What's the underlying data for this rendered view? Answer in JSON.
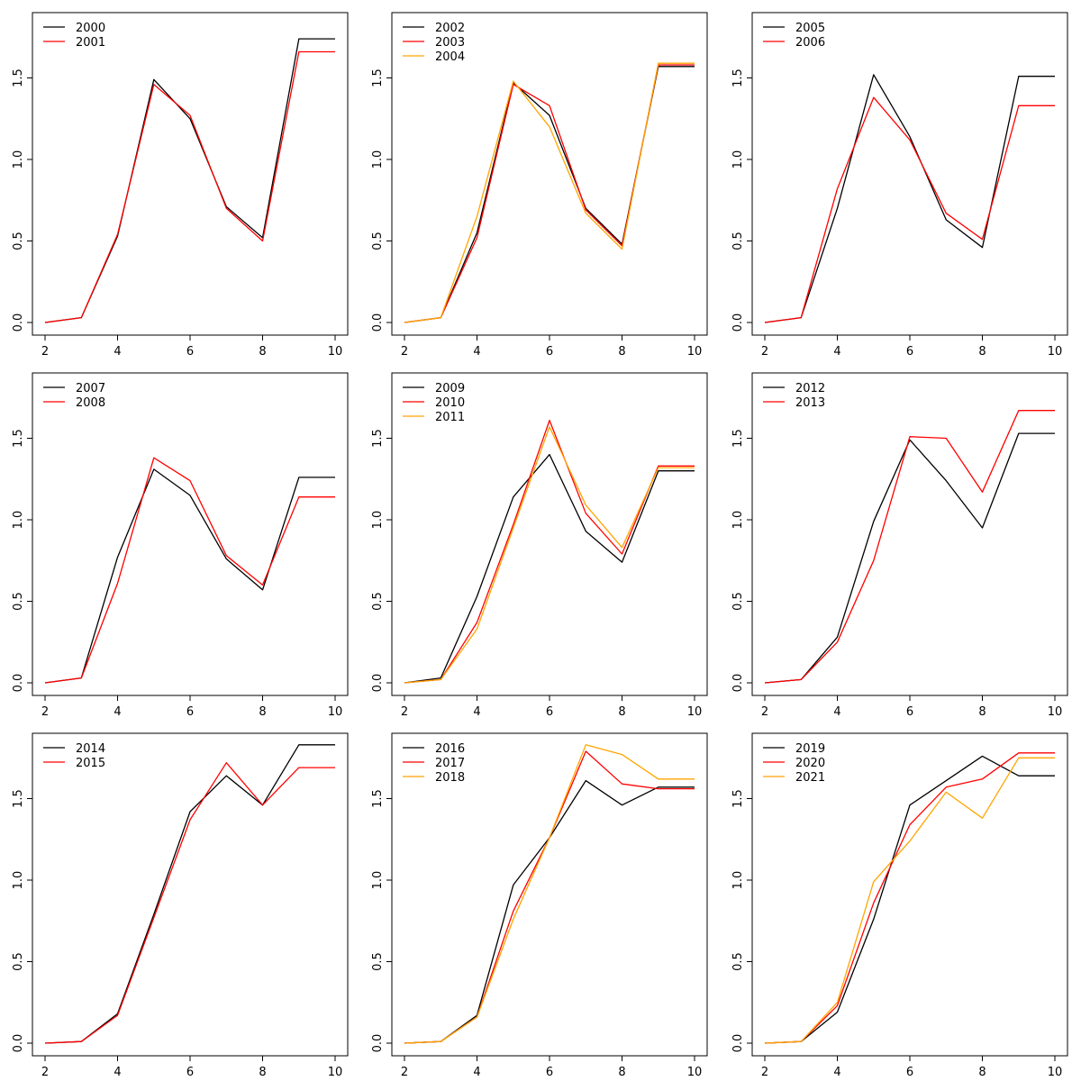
{
  "figure": {
    "colors": {
      "black": "#000000",
      "red": "#ff0000",
      "orange": "#ffa500"
    }
  },
  "chart_data": [
    {
      "type": "line",
      "x": [
        2,
        3,
        4,
        5,
        6,
        7,
        8,
        9,
        10
      ],
      "xlim": [
        2,
        10
      ],
      "ylim": [
        0,
        1.82
      ],
      "xticks": [
        "2",
        "4",
        "6",
        "8",
        "10"
      ],
      "yticks": [
        "0.0",
        "0.5",
        "1.0",
        "1.5"
      ],
      "legend_position": "top-left",
      "grid": false,
      "series": [
        {
          "name": "2000",
          "color": "#000000",
          "values": [
            0.0,
            0.03,
            0.53,
            1.49,
            1.25,
            0.71,
            0.52,
            1.74,
            1.74
          ]
        },
        {
          "name": "2001",
          "color": "#ff0000",
          "values": [
            0.0,
            0.03,
            0.54,
            1.46,
            1.27,
            0.7,
            0.5,
            1.66,
            1.66
          ]
        }
      ]
    },
    {
      "type": "line",
      "x": [
        2,
        3,
        4,
        5,
        6,
        7,
        8,
        9,
        10
      ],
      "xlim": [
        2,
        10
      ],
      "ylim": [
        0,
        1.82
      ],
      "xticks": [
        "2",
        "4",
        "6",
        "8",
        "10"
      ],
      "yticks": [
        "0.0",
        "0.5",
        "1.0",
        "1.5"
      ],
      "legend_position": "top-left",
      "grid": false,
      "series": [
        {
          "name": "2002",
          "color": "#000000",
          "values": [
            0.0,
            0.03,
            0.55,
            1.47,
            1.27,
            0.7,
            0.48,
            1.57,
            1.57
          ]
        },
        {
          "name": "2003",
          "color": "#ff0000",
          "values": [
            0.0,
            0.03,
            0.52,
            1.46,
            1.33,
            0.69,
            0.47,
            1.58,
            1.58
          ]
        },
        {
          "name": "2004",
          "color": "#ffa500",
          "values": [
            0.0,
            0.03,
            0.65,
            1.48,
            1.2,
            0.67,
            0.45,
            1.59,
            1.59
          ]
        }
      ]
    },
    {
      "type": "line",
      "x": [
        2,
        3,
        4,
        5,
        6,
        7,
        8,
        9,
        10
      ],
      "xlim": [
        2,
        10
      ],
      "ylim": [
        0,
        1.82
      ],
      "xticks": [
        "2",
        "4",
        "6",
        "8",
        "10"
      ],
      "yticks": [
        "0.0",
        "0.5",
        "1.0",
        "1.5"
      ],
      "legend_position": "top-left",
      "grid": false,
      "series": [
        {
          "name": "2005",
          "color": "#000000",
          "values": [
            0.0,
            0.03,
            0.7,
            1.52,
            1.14,
            0.63,
            0.46,
            1.51,
            1.51
          ]
        },
        {
          "name": "2006",
          "color": "#ff0000",
          "values": [
            0.0,
            0.03,
            0.82,
            1.38,
            1.12,
            0.67,
            0.51,
            1.33,
            1.33
          ]
        }
      ]
    },
    {
      "type": "line",
      "x": [
        2,
        3,
        4,
        5,
        6,
        7,
        8,
        9,
        10
      ],
      "xlim": [
        2,
        10
      ],
      "ylim": [
        0,
        1.82
      ],
      "xticks": [
        "2",
        "4",
        "6",
        "8",
        "10"
      ],
      "yticks": [
        "0.0",
        "0.5",
        "1.0",
        "1.5"
      ],
      "legend_position": "top-left",
      "grid": false,
      "series": [
        {
          "name": "2007",
          "color": "#000000",
          "values": [
            0.0,
            0.03,
            0.77,
            1.31,
            1.15,
            0.76,
            0.57,
            1.26,
            1.26
          ]
        },
        {
          "name": "2008",
          "color": "#ff0000",
          "values": [
            0.0,
            0.03,
            0.61,
            1.38,
            1.24,
            0.78,
            0.6,
            1.14,
            1.14
          ]
        }
      ]
    },
    {
      "type": "line",
      "x": [
        2,
        3,
        4,
        5,
        6,
        7,
        8,
        9,
        10
      ],
      "xlim": [
        2,
        10
      ],
      "ylim": [
        0,
        1.82
      ],
      "xticks": [
        "2",
        "4",
        "6",
        "8",
        "10"
      ],
      "yticks": [
        "0.0",
        "0.5",
        "1.0",
        "1.5"
      ],
      "legend_position": "top-left",
      "grid": false,
      "series": [
        {
          "name": "2009",
          "color": "#000000",
          "values": [
            0.0,
            0.03,
            0.53,
            1.14,
            1.4,
            0.93,
            0.74,
            1.3,
            1.3
          ]
        },
        {
          "name": "2010",
          "color": "#ff0000",
          "values": [
            0.0,
            0.02,
            0.37,
            0.97,
            1.61,
            1.04,
            0.79,
            1.33,
            1.33
          ]
        },
        {
          "name": "2011",
          "color": "#ffa500",
          "values": [
            0.0,
            0.02,
            0.33,
            0.95,
            1.57,
            1.09,
            0.83,
            1.32,
            1.32
          ]
        }
      ]
    },
    {
      "type": "line",
      "x": [
        2,
        3,
        4,
        5,
        6,
        7,
        8,
        9,
        10
      ],
      "xlim": [
        2,
        10
      ],
      "ylim": [
        0,
        1.82
      ],
      "xticks": [
        "2",
        "4",
        "6",
        "8",
        "10"
      ],
      "yticks": [
        "0.0",
        "0.5",
        "1.0",
        "1.5"
      ],
      "legend_position": "top-left",
      "grid": false,
      "series": [
        {
          "name": "2012",
          "color": "#000000",
          "values": [
            0.0,
            0.02,
            0.28,
            0.99,
            1.49,
            1.24,
            0.95,
            1.53,
            1.53
          ]
        },
        {
          "name": "2013",
          "color": "#ff0000",
          "values": [
            0.0,
            0.02,
            0.25,
            0.75,
            1.51,
            1.5,
            1.17,
            1.67,
            1.67
          ]
        }
      ]
    },
    {
      "type": "line",
      "x": [
        2,
        3,
        4,
        5,
        6,
        7,
        8,
        9,
        10
      ],
      "xlim": [
        2,
        10
      ],
      "ylim": [
        0,
        1.82
      ],
      "xticks": [
        "2",
        "4",
        "6",
        "8",
        "10"
      ],
      "yticks": [
        "0.0",
        "0.5",
        "1.0",
        "1.5"
      ],
      "legend_position": "top-left",
      "grid": false,
      "series": [
        {
          "name": "2014",
          "color": "#000000",
          "values": [
            0.0,
            0.01,
            0.18,
            0.79,
            1.42,
            1.64,
            1.46,
            1.83,
            1.83
          ]
        },
        {
          "name": "2015",
          "color": "#ff0000",
          "values": [
            0.0,
            0.01,
            0.17,
            0.77,
            1.37,
            1.72,
            1.46,
            1.69,
            1.69
          ]
        }
      ]
    },
    {
      "type": "line",
      "x": [
        2,
        3,
        4,
        5,
        6,
        7,
        8,
        9,
        10
      ],
      "xlim": [
        2,
        10
      ],
      "ylim": [
        0,
        1.82
      ],
      "xticks": [
        "2",
        "4",
        "6",
        "8",
        "10"
      ],
      "yticks": [
        "0.0",
        "0.5",
        "1.0",
        "1.5"
      ],
      "legend_position": "top-left",
      "grid": false,
      "series": [
        {
          "name": "2016",
          "color": "#000000",
          "values": [
            0.0,
            0.01,
            0.17,
            0.97,
            1.26,
            1.61,
            1.46,
            1.57,
            1.57
          ]
        },
        {
          "name": "2017",
          "color": "#ff0000",
          "values": [
            0.0,
            0.01,
            0.16,
            0.81,
            1.26,
            1.79,
            1.59,
            1.56,
            1.56
          ]
        },
        {
          "name": "2018",
          "color": "#ffa500",
          "values": [
            0.0,
            0.01,
            0.16,
            0.76,
            1.26,
            1.83,
            1.77,
            1.62,
            1.62
          ]
        }
      ]
    },
    {
      "type": "line",
      "x": [
        2,
        3,
        4,
        5,
        6,
        7,
        8,
        9,
        10
      ],
      "xlim": [
        2,
        10
      ],
      "ylim": [
        0,
        1.82
      ],
      "xticks": [
        "2",
        "4",
        "6",
        "8",
        "10"
      ],
      "yticks": [
        "0.0",
        "0.5",
        "1.0",
        "1.5"
      ],
      "legend_position": "top-left",
      "grid": false,
      "series": [
        {
          "name": "2019",
          "color": "#000000",
          "values": [
            0.0,
            0.01,
            0.19,
            0.76,
            1.46,
            1.61,
            1.76,
            1.64,
            1.64
          ]
        },
        {
          "name": "2020",
          "color": "#ff0000",
          "values": [
            0.0,
            0.01,
            0.23,
            0.86,
            1.34,
            1.57,
            1.62,
            1.78,
            1.78
          ]
        },
        {
          "name": "2021",
          "color": "#ffa500",
          "values": [
            0.0,
            0.01,
            0.25,
            0.99,
            1.24,
            1.54,
            1.38,
            1.75,
            1.75
          ]
        }
      ]
    }
  ]
}
